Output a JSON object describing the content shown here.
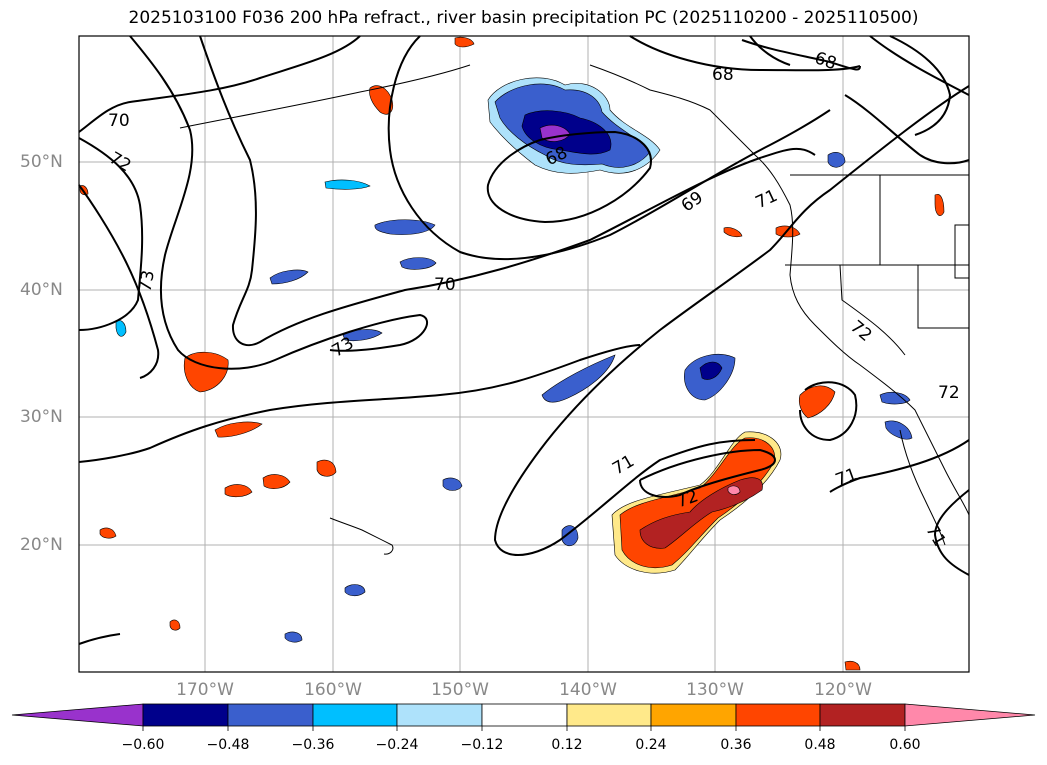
{
  "title": "2025103100 F036 200 hPa refract., river basin precipitation PC (2025110200 - 2025110500)",
  "lat_labels": [
    "50°N",
    "40°N",
    "30°N",
    "20°N"
  ],
  "lon_labels": [
    "170°W",
    "160°W",
    "150°W",
    "140°W",
    "130°W",
    "120°W"
  ],
  "contour_labels": [
    "70",
    "72",
    "73",
    "73",
    "68",
    "68",
    "69",
    "70",
    "71",
    "72",
    "68",
    "71",
    "72",
    "71",
    "72",
    "71"
  ],
  "colorbar": {
    "ticks": [
      "−0.60",
      "−0.48",
      "−0.36",
      "−0.24",
      "−0.12",
      "0.12",
      "0.24",
      "0.36",
      "0.48",
      "0.60"
    ],
    "colors": [
      "#9932cc",
      "#00008b",
      "#3a5fcd",
      "#00bfff",
      "#aee2fb",
      "#ffffff",
      "#ffe98a",
      "#ffa500",
      "#ff4500",
      "#b22222",
      "#ff88aa"
    ]
  },
  "colors": {
    "grid": "#b0b0b0",
    "contour": "#000000",
    "label_gray": "#888888"
  }
}
